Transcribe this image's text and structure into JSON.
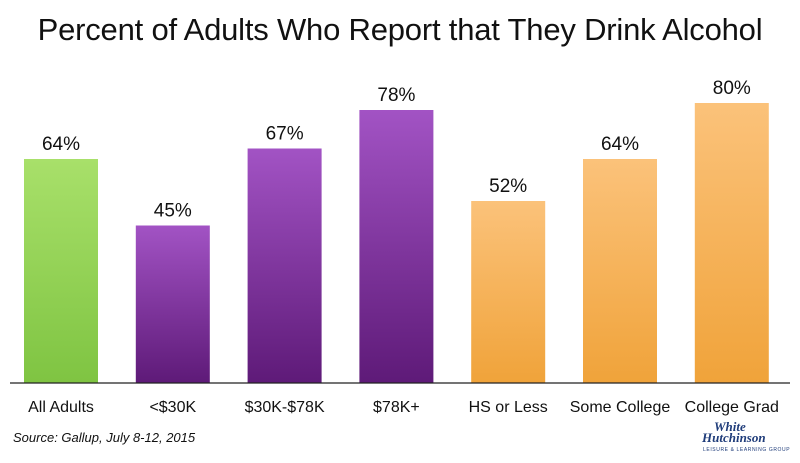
{
  "chart_data": {
    "type": "bar",
    "title": "Percent of Adults Who Report that They Drink Alcohol",
    "categories": [
      "All Adults",
      "<$30K",
      "$30K-$78K",
      "$78K+",
      "HS or Less",
      "Some College",
      "College Grad"
    ],
    "values": [
      64,
      45,
      67,
      78,
      52,
      64,
      80
    ],
    "value_labels": [
      "64%",
      "45%",
      "67%",
      "78%",
      "52%",
      "64%",
      "80%"
    ],
    "groups": [
      "overall",
      "income",
      "income",
      "income",
      "education",
      "education",
      "education"
    ],
    "group_colors": {
      "overall": [
        "#a8e06a",
        "#7fc442"
      ],
      "income": [
        "#a253c4",
        "#5e1a78"
      ],
      "education": [
        "#fbc27a",
        "#f0a33a"
      ]
    },
    "unit": "%",
    "ylim": [
      0,
      80
    ],
    "grid": false,
    "legend": "none",
    "xlabel": "",
    "ylabel": ""
  },
  "source": "Source: Gallup, July 8-12, 2015",
  "logo": {
    "line1": "White",
    "line2": "Hutchinson",
    "tagline": "LEISURE & LEARNING GROUP"
  }
}
